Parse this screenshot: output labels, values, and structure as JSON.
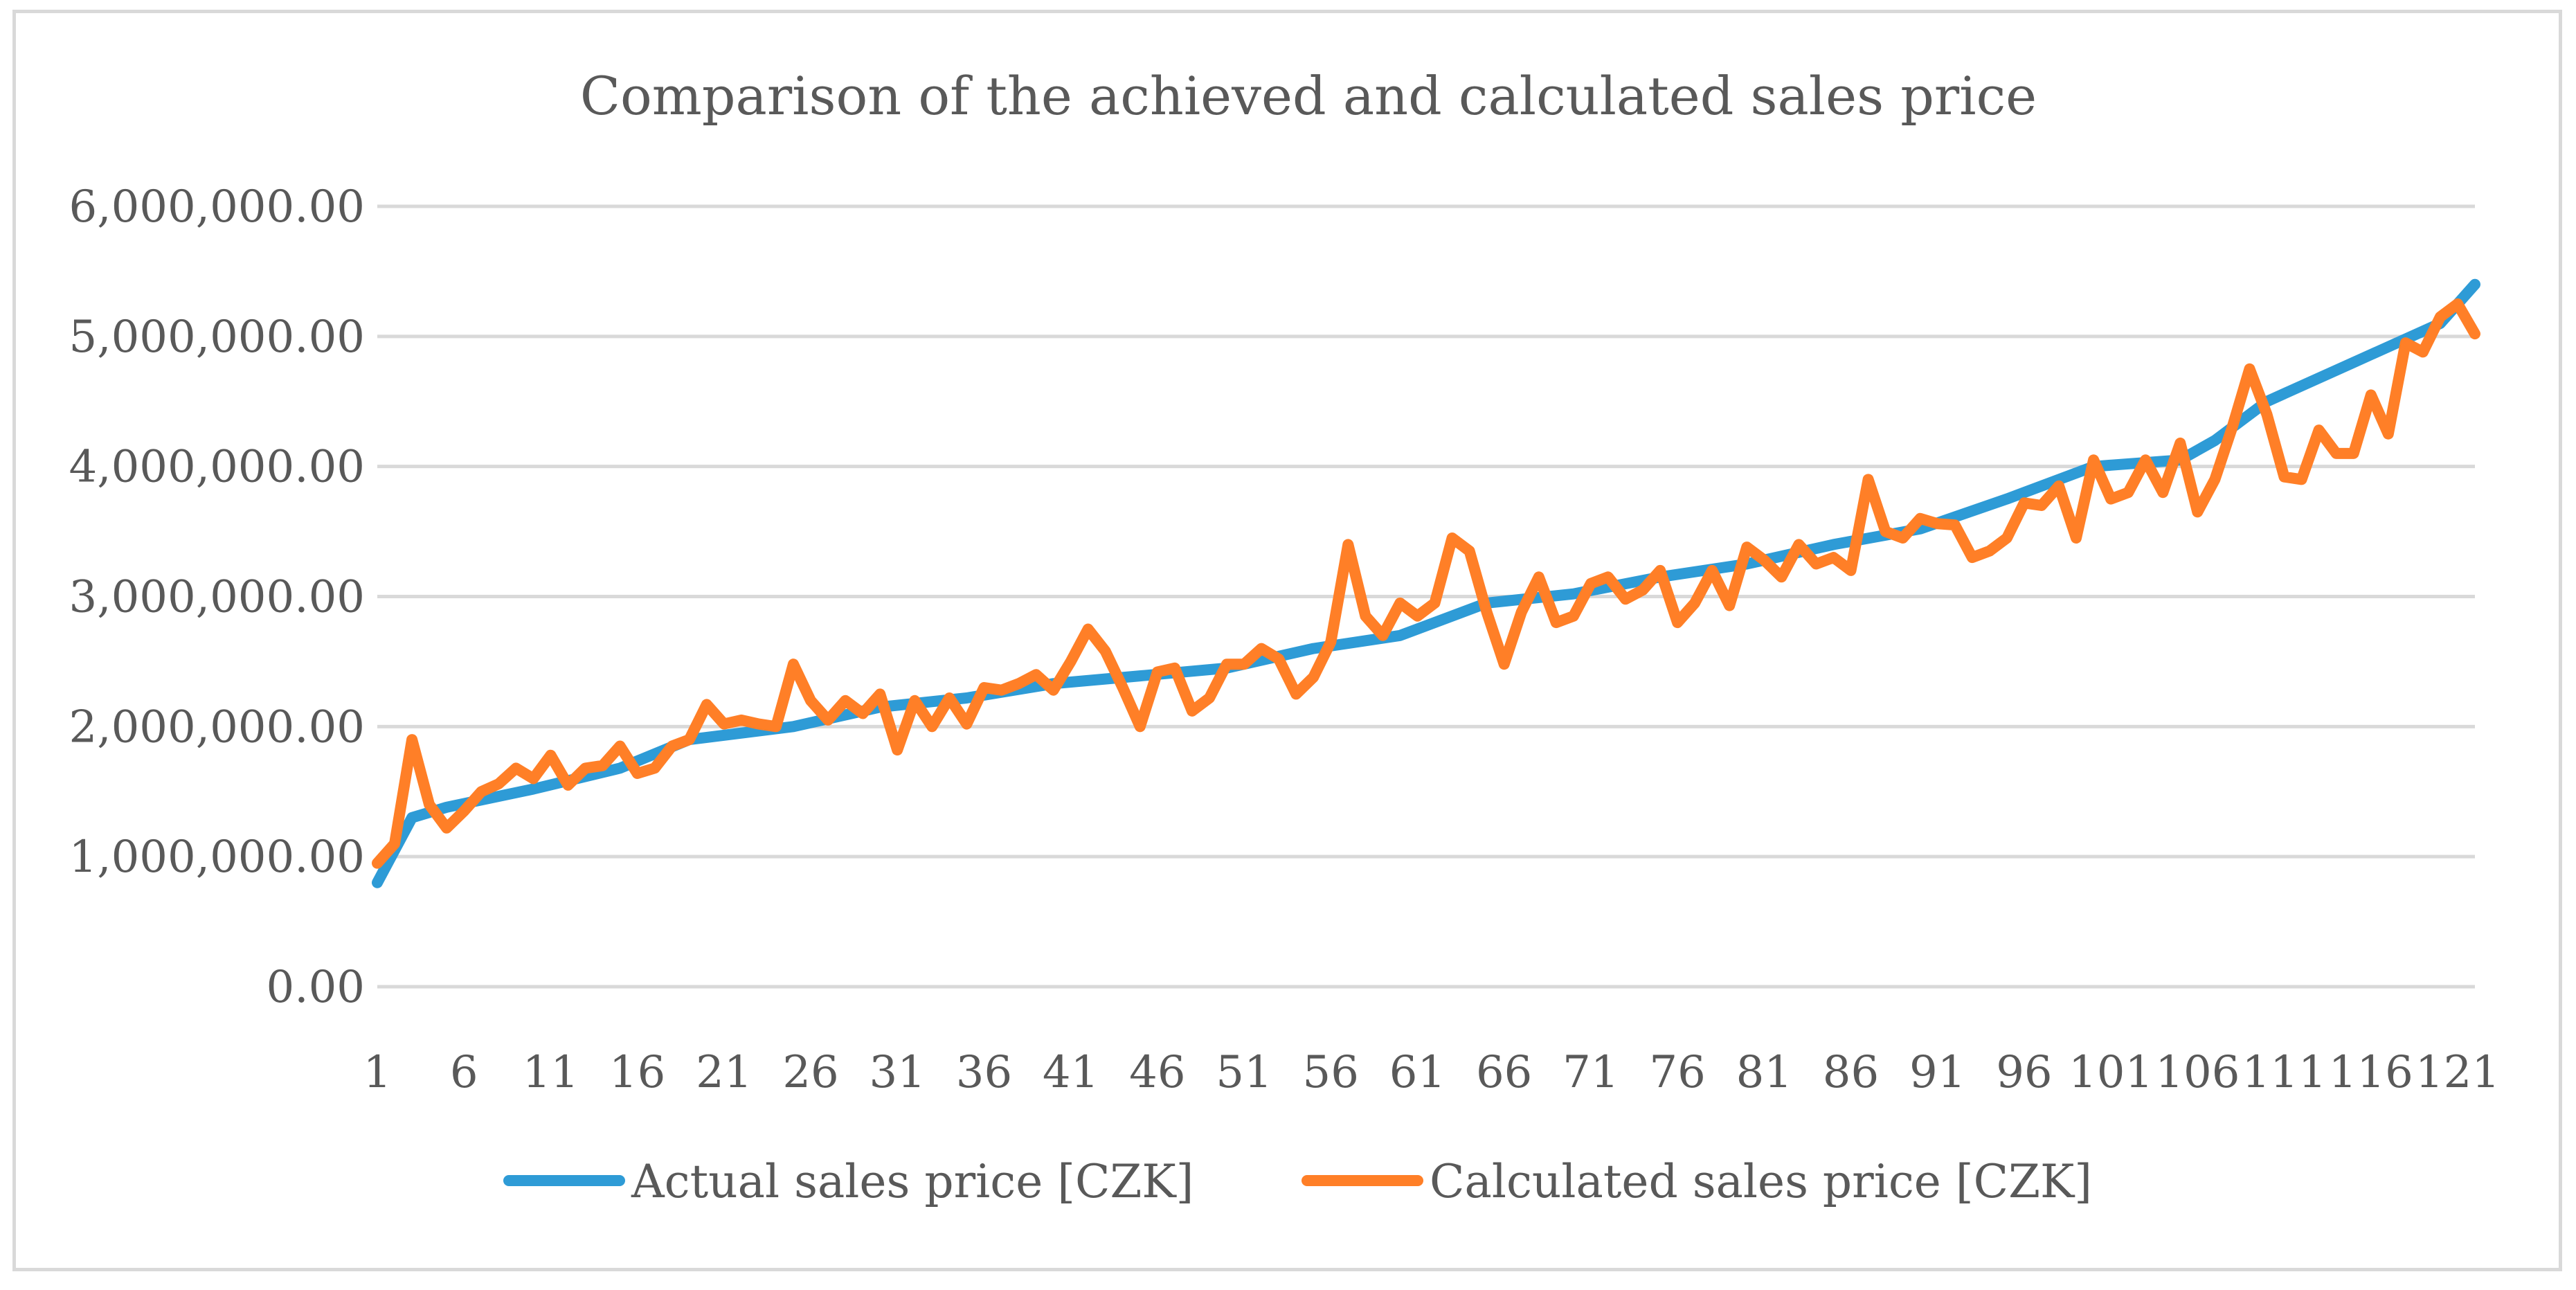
{
  "chart_data": {
    "type": "line",
    "title": "Comparison of the achieved and calculated sales price",
    "xlabel": "",
    "ylabel": "",
    "ylim": [
      0,
      6000000
    ],
    "yticks": [
      0,
      1000000,
      2000000,
      3000000,
      4000000,
      5000000,
      6000000
    ],
    "ytick_labels": [
      "0.00",
      "1,000,000.00",
      "2,000,000.00",
      "3,000,000.00",
      "4,000,000.00",
      "5,000,000.00",
      "6,000,000.00"
    ],
    "xlim": [
      1,
      122
    ],
    "xtick_labels": [
      "1",
      "6",
      "11",
      "16",
      "21",
      "26",
      "31",
      "36",
      "41",
      "46",
      "51",
      "56",
      "61",
      "66",
      "71",
      "76",
      "81",
      "86",
      "91",
      "96",
      "101",
      "106",
      "111",
      "116",
      "121"
    ],
    "grid": true,
    "legend": "bottom",
    "series": [
      {
        "name": "Actual sales price [CZK]",
        "color": "#2e9bd6",
        "x": [
          1,
          3,
          5,
          10,
          15,
          19,
          25,
          30,
          35,
          40,
          45,
          50,
          55,
          60,
          65,
          70,
          75,
          80,
          85,
          90,
          95,
          100,
          105,
          107,
          110,
          115,
          120,
          122
        ],
        "values": [
          800000,
          1300000,
          1380000,
          1520000,
          1680000,
          1900000,
          2000000,
          2150000,
          2220000,
          2330000,
          2390000,
          2450000,
          2600000,
          2700000,
          2950000,
          3020000,
          3150000,
          3250000,
          3400000,
          3520000,
          3750000,
          4000000,
          4050000,
          4200000,
          4500000,
          4800000,
          5100000,
          5400000
        ]
      },
      {
        "name": "Calculated sales price [CZK]",
        "color": "#ff7f27",
        "x": [
          1,
          2,
          3,
          4,
          5,
          6,
          7,
          8,
          9,
          10,
          11,
          12,
          13,
          14,
          15,
          16,
          17,
          18,
          19,
          20,
          21,
          22,
          23,
          24,
          25,
          26,
          27,
          28,
          29,
          30,
          31,
          32,
          33,
          34,
          35,
          36,
          37,
          38,
          39,
          40,
          41,
          42,
          43,
          44,
          45,
          46,
          47,
          48,
          49,
          50,
          51,
          52,
          53,
          54,
          55,
          56,
          57,
          58,
          59,
          60,
          61,
          62,
          63,
          64,
          65,
          66,
          67,
          68,
          69,
          70,
          71,
          72,
          73,
          74,
          75,
          76,
          77,
          78,
          79,
          80,
          81,
          82,
          83,
          84,
          85,
          86,
          87,
          88,
          89,
          90,
          91,
          92,
          93,
          94,
          95,
          96,
          97,
          98,
          99,
          100,
          101,
          102,
          103,
          104,
          105,
          106,
          107,
          108,
          109,
          110,
          111,
          112,
          113,
          114,
          115,
          116,
          117,
          118,
          119,
          120,
          121,
          122
        ],
        "values": [
          950000,
          1100000,
          1900000,
          1400000,
          1220000,
          1350000,
          1500000,
          1560000,
          1680000,
          1600000,
          1780000,
          1550000,
          1680000,
          1700000,
          1850000,
          1640000,
          1680000,
          1850000,
          1900000,
          2170000,
          2020000,
          2050000,
          2020000,
          2000000,
          2480000,
          2200000,
          2050000,
          2200000,
          2100000,
          2250000,
          1820000,
          2200000,
          2000000,
          2220000,
          2020000,
          2300000,
          2280000,
          2330000,
          2400000,
          2280000,
          2500000,
          2750000,
          2580000,
          2300000,
          2000000,
          2420000,
          2450000,
          2120000,
          2220000,
          2480000,
          2480000,
          2600000,
          2520000,
          2250000,
          2380000,
          2650000,
          3400000,
          2850000,
          2700000,
          2950000,
          2850000,
          2950000,
          3450000,
          3350000,
          2880000,
          2480000,
          2880000,
          3150000,
          2800000,
          2850000,
          3100000,
          3150000,
          2980000,
          3050000,
          3200000,
          2800000,
          2950000,
          3200000,
          2930000,
          3380000,
          3280000,
          3150000,
          3400000,
          3250000,
          3300000,
          3200000,
          3900000,
          3500000,
          3450000,
          3600000,
          3560000,
          3550000,
          3300000,
          3350000,
          3450000,
          3720000,
          3700000,
          3850000,
          3450000,
          4050000,
          3750000,
          3800000,
          4050000,
          3800000,
          4180000,
          3650000,
          3900000,
          4300000,
          4750000,
          4400000,
          3920000,
          3900000,
          4280000,
          4100000,
          4100000,
          4550000,
          4250000,
          4950000,
          4880000,
          5150000,
          5250000,
          5020000
        ]
      }
    ]
  }
}
